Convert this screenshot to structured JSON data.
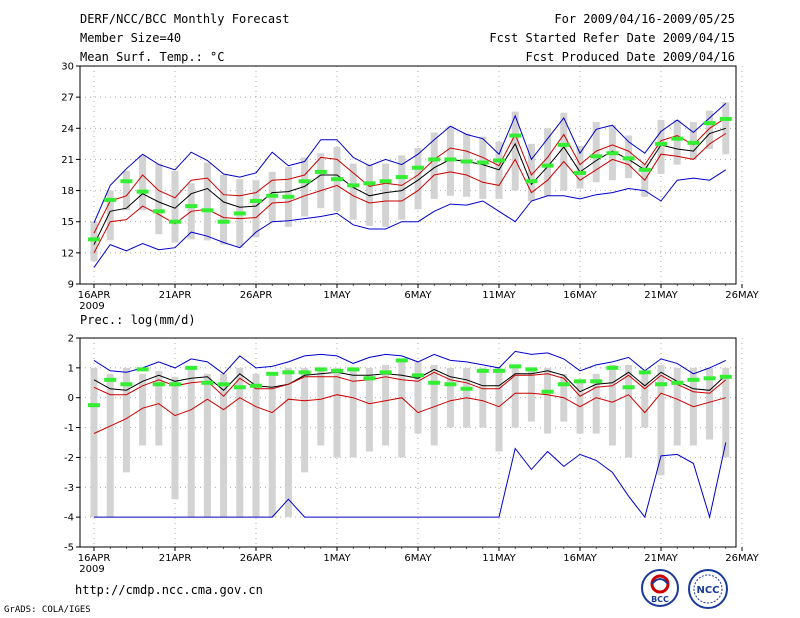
{
  "header": {
    "title": "DERF/NCC/BCC Monthly Forecast",
    "member_size": "Member Size=40",
    "var1_label": "Mean Surf. Temp.: °C",
    "forecast_period": "For 2009/04/16-2009/05/25",
    "started_refer": "Fcst Started Refer Date 2009/04/15",
    "produced": "Fcst Produced Date 2009/04/16"
  },
  "footer": {
    "url": "http://cmdp.ncc.cma.gov.cn",
    "grads": "GrADS: COLA/IGES",
    "logo_left": "BCC",
    "logo_right": "NCC"
  },
  "colors": {
    "max_min": "#0000cc",
    "spread": "#cc0000",
    "mean": "#000000",
    "obs": "#33ee33",
    "box": "#d3d3d3"
  },
  "chart_data": [
    {
      "id": "temperature",
      "type": "line",
      "title": "Mean Surf. Temp.: °C",
      "xlabel": "",
      "ylabel": "°C",
      "ylim": [
        9,
        30
      ],
      "yticks": [
        9,
        12,
        15,
        18,
        21,
        24,
        27,
        30
      ],
      "xticks": [
        {
          "day": 0,
          "label": "16APR",
          "sub": "2009"
        },
        {
          "day": 5,
          "label": "21APR"
        },
        {
          "day": 10,
          "label": "26APR"
        },
        {
          "day": 15,
          "label": "1MAY"
        },
        {
          "day": 20,
          "label": "6MAY"
        },
        {
          "day": 25,
          "label": "11MAY"
        },
        {
          "day": 30,
          "label": "16MAY"
        },
        {
          "day": 35,
          "label": "21MAY"
        },
        {
          "day": 40,
          "label": "26MAY"
        }
      ],
      "x": [
        0,
        1,
        2,
        3,
        4,
        5,
        6,
        7,
        8,
        9,
        10,
        11,
        12,
        13,
        14,
        15,
        16,
        17,
        18,
        19,
        20,
        21,
        22,
        23,
        24,
        25,
        26,
        27,
        28,
        29,
        30,
        31,
        32,
        33,
        34,
        35,
        36,
        37,
        38,
        39
      ],
      "series": [
        {
          "name": "max",
          "values": [
            10.6,
            12.8,
            12.2,
            12.9,
            12.3,
            12.5,
            14.0,
            13.6,
            13.0,
            12.5,
            14.0,
            15.0,
            15.1,
            15.3,
            15.5,
            15.8,
            14.7,
            14.3,
            14.3,
            15.0,
            15.0,
            16.0,
            16.7,
            16.6,
            17.0,
            16.0,
            15.0,
            17.0,
            17.5,
            17.5,
            17.2,
            17.6,
            17.8,
            18.2,
            18.0,
            17.0,
            19.0,
            19.2,
            19.0,
            20.0
          ]
        },
        {
          "name": "spread_low",
          "values": [
            12.0,
            15.0,
            15.2,
            16.5,
            15.7,
            14.8,
            16.0,
            16.2,
            15.4,
            15.3,
            15.4,
            16.8,
            16.9,
            17.5,
            18.0,
            18.5,
            17.5,
            16.8,
            17.0,
            17.0,
            18.0,
            19.5,
            19.8,
            19.5,
            18.8,
            18.5,
            21.0,
            17.8,
            19.0,
            20.8,
            19.0,
            20.0,
            21.0,
            20.5,
            19.0,
            21.5,
            21.3,
            21.0,
            22.5,
            23.5
          ]
        },
        {
          "name": "mean",
          "values": [
            12.8,
            16.0,
            16.3,
            17.7,
            16.9,
            16.3,
            17.7,
            18.2,
            16.9,
            16.4,
            16.5,
            17.8,
            17.9,
            18.4,
            19.5,
            19.5,
            18.3,
            17.5,
            17.8,
            18.0,
            19.0,
            20.2,
            21.0,
            20.8,
            20.5,
            20.0,
            22.5,
            18.6,
            20.3,
            22.2,
            19.8,
            20.9,
            21.8,
            21.0,
            20.0,
            22.4,
            22.0,
            21.8,
            23.5,
            24.0
          ]
        },
        {
          "name": "spread_high",
          "values": [
            13.9,
            17.0,
            17.5,
            19.5,
            18.0,
            17.3,
            19.0,
            19.2,
            17.6,
            17.5,
            17.8,
            19.0,
            19.1,
            19.5,
            21.2,
            21.0,
            19.7,
            18.4,
            18.7,
            18.5,
            19.5,
            21.0,
            22.1,
            21.8,
            21.2,
            20.4,
            23.4,
            19.5,
            21.2,
            23.4,
            20.5,
            21.8,
            22.4,
            21.8,
            20.5,
            22.8,
            23.3,
            22.4,
            24.0,
            25.0
          ]
        },
        {
          "name": "min",
          "values": [
            14.9,
            18.5,
            20.1,
            21.5,
            20.5,
            20.0,
            21.7,
            20.9,
            19.6,
            19.3,
            19.7,
            21.7,
            20.4,
            20.8,
            22.9,
            22.9,
            21.2,
            20.4,
            21.0,
            20.5,
            21.5,
            22.9,
            24.2,
            23.4,
            23.0,
            21.5,
            25.2,
            21.0,
            23.0,
            25.0,
            21.6,
            23.9,
            24.3,
            22.7,
            21.6,
            23.7,
            24.8,
            23.6,
            25.0,
            26.4
          ]
        }
      ],
      "box_low": [
        11.2,
        13.2,
        16.1,
        16.1,
        13.8,
        13.0,
        13.3,
        13.2,
        12.8,
        12.5,
        13.5,
        15.0,
        14.5,
        15.5,
        16.3,
        16.0,
        15.2,
        14.6,
        14.5,
        15.2,
        16.2,
        17.2,
        17.5,
        17.4,
        17.2,
        17.2,
        18.0,
        17.0,
        17.5,
        18.0,
        18.2,
        18.8,
        19.0,
        19.2,
        17.4,
        19.6,
        20.5,
        21.0,
        22.0,
        21.5
      ],
      "box_high": [
        15.0,
        18.0,
        19.9,
        21.4,
        20.6,
        19.9,
        18.7,
        20.7,
        19.5,
        19.1,
        19.0,
        19.8,
        20.3,
        21.2,
        21.6,
        22.2,
        20.6,
        20.5,
        20.6,
        21.4,
        22.1,
        23.6,
        24.2,
        23.5,
        23.2,
        22.7,
        25.6,
        22.5,
        24.0,
        25.5,
        22.3,
        24.6,
        24.3,
        23.3,
        20.6,
        24.8,
        24.8,
        24.6,
        25.7,
        26.5
      ],
      "obs": [
        13.3,
        17.1,
        18.9,
        17.9,
        16.0,
        15.0,
        16.5,
        16.1,
        15.0,
        15.8,
        17.0,
        17.5,
        17.4,
        18.9,
        19.8,
        19.1,
        18.5,
        18.7,
        18.9,
        19.3,
        20.2,
        21.0,
        21.0,
        20.8,
        20.7,
        20.9,
        23.3,
        18.9,
        20.4,
        22.4,
        19.7,
        21.3,
        21.6,
        21.1,
        20.0,
        22.5,
        23.0,
        22.6,
        24.5,
        24.9
      ]
    },
    {
      "id": "precipitation",
      "type": "line",
      "title": "Prec.: log(mm/d)",
      "xlabel": "",
      "ylabel": "log(mm/d)",
      "ylim": [
        -5,
        2
      ],
      "yticks": [
        -5,
        -4,
        -3,
        -2,
        -1,
        0,
        1,
        2
      ],
      "xticks": [
        {
          "day": 0,
          "label": "16APR",
          "sub": "2009"
        },
        {
          "day": 5,
          "label": "21APR"
        },
        {
          "day": 10,
          "label": "26APR"
        },
        {
          "day": 15,
          "label": "1MAY"
        },
        {
          "day": 20,
          "label": "6MAY"
        },
        {
          "day": 25,
          "label": "11MAY"
        },
        {
          "day": 30,
          "label": "16MAY"
        },
        {
          "day": 35,
          "label": "21MAY"
        },
        {
          "day": 40,
          "label": "26MAY"
        }
      ],
      "x": [
        0,
        1,
        2,
        3,
        4,
        5,
        6,
        7,
        8,
        9,
        10,
        11,
        12,
        13,
        14,
        15,
        16,
        17,
        18,
        19,
        20,
        21,
        22,
        23,
        24,
        25,
        26,
        27,
        28,
        29,
        30,
        31,
        32,
        33,
        34,
        35,
        36,
        37,
        38,
        39
      ],
      "series": [
        {
          "name": "max",
          "values": [
            -4.0,
            -4.0,
            -4.0,
            -4.0,
            -4.0,
            -4.0,
            -4.0,
            -4.0,
            -4.0,
            -4.0,
            -4.0,
            -4.0,
            -3.4,
            -4.0,
            -4.0,
            -4.0,
            -4.0,
            -4.0,
            -4.0,
            -4.0,
            -4.0,
            -4.0,
            -4.0,
            -4.0,
            -4.0,
            -4.0,
            -1.7,
            -2.4,
            -1.8,
            -2.3,
            -1.9,
            -2.1,
            -2.5,
            -3.3,
            -4.0,
            -1.95,
            -1.9,
            -2.2,
            -4.0,
            -1.5
          ]
        },
        {
          "name": "spread_low",
          "values": [
            -1.2,
            -0.95,
            -0.7,
            -0.35,
            -0.2,
            -0.6,
            -0.4,
            -0.05,
            -0.4,
            0.0,
            -0.3,
            -0.5,
            -0.05,
            -0.1,
            -0.05,
            0.1,
            0.0,
            -0.2,
            -0.1,
            0.0,
            -0.5,
            -0.3,
            -0.1,
            0.0,
            -0.1,
            -0.3,
            0.15,
            0.15,
            0.1,
            0.0,
            -0.3,
            0.0,
            -0.15,
            0.1,
            -0.5,
            0.15,
            -0.05,
            -0.3,
            -0.15,
            0.0
          ]
        },
        {
          "name": "mean",
          "values": [
            0.6,
            0.3,
            0.25,
            0.55,
            0.75,
            0.55,
            0.65,
            0.7,
            0.25,
            0.8,
            0.4,
            0.35,
            0.45,
            0.75,
            0.8,
            0.85,
            0.75,
            0.75,
            0.8,
            0.75,
            0.65,
            0.95,
            0.7,
            0.6,
            0.4,
            0.4,
            0.8,
            0.8,
            0.9,
            0.75,
            0.2,
            0.45,
            0.5,
            0.85,
            0.4,
            0.85,
            0.55,
            0.3,
            0.25,
            0.75
          ]
        },
        {
          "name": "spread_high",
          "values": [
            0.35,
            0.1,
            0.1,
            0.4,
            0.6,
            0.4,
            0.5,
            0.55,
            0.05,
            0.65,
            0.3,
            0.3,
            0.45,
            0.7,
            0.7,
            0.7,
            0.55,
            0.6,
            0.7,
            0.6,
            0.55,
            0.85,
            0.6,
            0.5,
            0.3,
            0.3,
            0.75,
            0.75,
            0.8,
            0.65,
            0.05,
            0.35,
            0.4,
            0.75,
            0.3,
            0.75,
            0.45,
            0.2,
            0.15,
            0.6
          ]
        },
        {
          "name": "min",
          "values": [
            1.25,
            0.9,
            0.85,
            1.0,
            1.2,
            1.0,
            1.3,
            1.2,
            0.8,
            1.4,
            1.0,
            1.05,
            1.2,
            1.4,
            1.45,
            1.4,
            1.15,
            1.35,
            1.45,
            1.4,
            1.2,
            1.45,
            1.25,
            1.2,
            1.1,
            1.0,
            1.55,
            1.45,
            1.5,
            1.3,
            0.9,
            1.1,
            1.2,
            1.35,
            0.9,
            1.3,
            1.15,
            0.8,
            1.0,
            1.25
          ]
        }
      ],
      "box_low": [
        -4.0,
        -4.0,
        -2.5,
        -1.6,
        -1.6,
        -3.4,
        -4.0,
        -4.0,
        -4.0,
        -4.0,
        -4.0,
        -4.0,
        -4.0,
        -2.5,
        -1.6,
        -2.0,
        -2.0,
        -1.8,
        -1.6,
        -2.0,
        -1.2,
        -1.6,
        -1.0,
        -1.0,
        -1.0,
        -1.8,
        -1.0,
        -0.8,
        -1.2,
        -0.8,
        -1.2,
        -1.2,
        -1.6,
        -2.0,
        -1.0,
        -2.6,
        -1.6,
        -1.6,
        -1.4,
        -2.0
      ],
      "box_high": [
        1.0,
        0.8,
        1.0,
        0.8,
        0.9,
        0.7,
        1.0,
        0.8,
        0.8,
        1.0,
        0.8,
        0.8,
        1.0,
        1.0,
        1.0,
        1.0,
        1.0,
        1.0,
        1.1,
        1.2,
        1.2,
        1.1,
        1.0,
        1.0,
        1.0,
        1.0,
        1.0,
        1.0,
        1.0,
        0.8,
        0.6,
        0.8,
        1.1,
        1.1,
        0.8,
        1.1,
        1.0,
        1.0,
        1.0,
        1.0
      ],
      "obs": [
        -0.25,
        0.6,
        0.45,
        0.95,
        0.45,
        0.45,
        1.0,
        0.5,
        0.45,
        0.35,
        0.4,
        0.8,
        0.85,
        0.85,
        0.95,
        0.9,
        0.95,
        0.65,
        0.85,
        1.25,
        0.75,
        0.5,
        0.45,
        0.3,
        0.9,
        0.9,
        1.05,
        0.95,
        0.2,
        0.45,
        0.55,
        0.55,
        1.0,
        0.35,
        0.85,
        0.45,
        0.5,
        0.6,
        0.65,
        0.7
      ]
    }
  ]
}
